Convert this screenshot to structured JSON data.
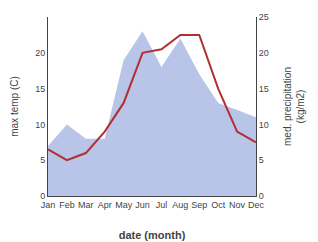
{
  "chart_data": {
    "type": "line",
    "xlabel": "date (month)",
    "ylabel": "max temp (C)",
    "y2label": "med. precipitation\n(kg/m2)",
    "categories": [
      "Jan",
      "Feb",
      "Mar",
      "Apr",
      "May",
      "Jun",
      "Jul",
      "Aug",
      "Sep",
      "Oct",
      "Nov",
      "Dec"
    ],
    "series": [
      {
        "type": "area",
        "color": "#b8c4e8",
        "axis": "y2",
        "values": [
          7.0,
          10.0,
          8.0,
          8.0,
          19.0,
          23.0,
          18.0,
          22.0,
          17.0,
          13.0,
          12.0,
          11.0
        ]
      },
      {
        "type": "line",
        "color": "#b03030",
        "values": [
          6.5,
          5.0,
          6.0,
          9.0,
          13.0,
          20.0,
          20.5,
          22.5,
          22.5,
          15.0,
          9.0,
          7.5
        ]
      }
    ],
    "ylim": [
      0,
      25
    ],
    "yticks": [
      0,
      5,
      10,
      15,
      20
    ],
    "y2lim": [
      0,
      25
    ],
    "y2ticks": [
      0,
      5,
      10,
      15,
      20,
      25
    ],
    "grid": false
  }
}
